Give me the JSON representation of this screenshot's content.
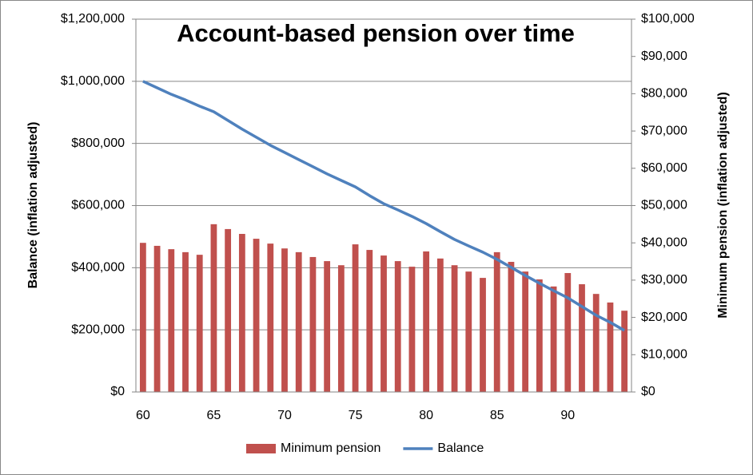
{
  "chart_data": {
    "type": "bar+line",
    "title": "Account-based pension over time",
    "y_label": "Balance (inflation adjusted)",
    "y2_label": "Minimum pension (inflation adjusted)",
    "categories": [
      60,
      null,
      null,
      null,
      null,
      65,
      null,
      null,
      null,
      null,
      70,
      null,
      null,
      null,
      null,
      75,
      null,
      null,
      null,
      null,
      80,
      null,
      null,
      null,
      null,
      85,
      null,
      null,
      null,
      null,
      90,
      null,
      null,
      null,
      null
    ],
    "series": [
      {
        "name": "Minimum pension",
        "type": "bar",
        "axis": "y2",
        "color": "#c0504d",
        "values": [
          40000,
          39200,
          38300,
          37500,
          36800,
          45000,
          43700,
          42400,
          41100,
          39800,
          38500,
          37500,
          36200,
          35100,
          34000,
          39600,
          38100,
          36600,
          35100,
          33600,
          37700,
          35800,
          34000,
          32300,
          30600,
          37500,
          34900,
          32300,
          30200,
          28300,
          31900,
          28900,
          26300,
          24000,
          21800
        ]
      },
      {
        "name": "Balance",
        "type": "line",
        "axis": "y",
        "color": "#4f81bd",
        "values": [
          1000000,
          979000,
          958000,
          940000,
          920000,
          902000,
          874000,
          846000,
          820000,
          794000,
          771000,
          748000,
          725000,
          702000,
          681000,
          660000,
          632000,
          606000,
          586000,
          565000,
          542000,
          516000,
          491000,
          470000,
          450000,
          427000,
          401000,
          375000,
          350000,
          326000,
          303000,
          275000,
          247000,
          224000,
          198000
        ]
      }
    ],
    "ylim": [
      0,
      1200000
    ],
    "yticks": [
      {
        "value": 0,
        "label": "$0"
      },
      {
        "value": 200000,
        "label": "$200,000"
      },
      {
        "value": 400000,
        "label": "$400,000"
      },
      {
        "value": 600000,
        "label": "$600,000"
      },
      {
        "value": 800000,
        "label": "$800,000"
      },
      {
        "value": 1000000,
        "label": "$1,000,000"
      },
      {
        "value": 1200000,
        "label": "$1,200,000"
      }
    ],
    "y2lim": [
      0,
      100000
    ],
    "y2ticks": [
      {
        "value": 0,
        "label": "$0"
      },
      {
        "value": 10000,
        "label": "$10,000"
      },
      {
        "value": 20000,
        "label": "$20,000"
      },
      {
        "value": 30000,
        "label": "$30,000"
      },
      {
        "value": 40000,
        "label": "$40,000"
      },
      {
        "value": 50000,
        "label": "$50,000"
      },
      {
        "value": 60000,
        "label": "$60,000"
      },
      {
        "value": 70000,
        "label": "$70,000"
      },
      {
        "value": 80000,
        "label": "$80,000"
      },
      {
        "value": 90000,
        "label": "$90,000"
      },
      {
        "value": 100000,
        "label": "$100,000"
      }
    ],
    "grid": true,
    "legend": "bottom"
  }
}
